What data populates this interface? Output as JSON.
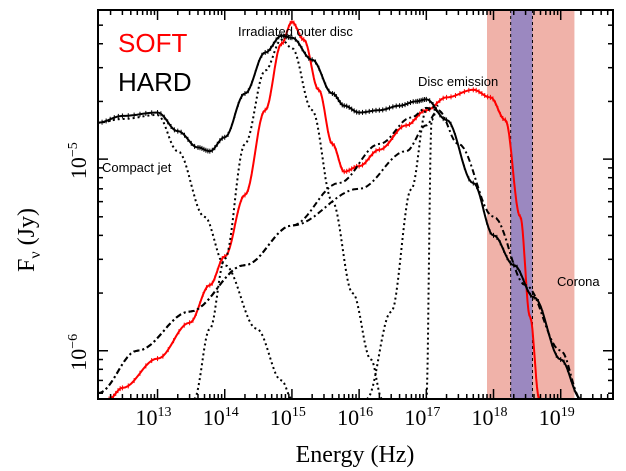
{
  "chart_data": {
    "type": "line",
    "xlabel": "Energy (Hz)",
    "ylabel_main": "F",
    "ylabel_sub": "ν",
    "ylabel_unit": " (Jy)",
    "x_scale": "log",
    "y_scale": "log",
    "xlim": [
      1300000000000.0,
      6e+19
    ],
    "ylim": [
      5.6e-07,
      6e-05
    ],
    "x_ticks": [
      {
        "base": "10",
        "exp": "13",
        "value": 10000000000000.0
      },
      {
        "base": "10",
        "exp": "14",
        "value": 100000000000000.0
      },
      {
        "base": "10",
        "exp": "15",
        "value": 1000000000000000.0
      },
      {
        "base": "10",
        "exp": "16",
        "value": 1e+16
      },
      {
        "base": "10",
        "exp": "17",
        "value": 1e+17
      },
      {
        "base": "10",
        "exp": "18",
        "value": 1e+18
      },
      {
        "base": "10",
        "exp": "19",
        "value": 1e+19
      }
    ],
    "y_ticks": [
      {
        "base": "10",
        "exp": "−5",
        "value": 1e-05
      },
      {
        "base": "10",
        "exp": "−6",
        "value": 1e-06
      }
    ],
    "legend": [
      {
        "label": "SOFT",
        "color": "#ff0000"
      },
      {
        "label": "HARD",
        "color": "#000000"
      }
    ],
    "annotations": {
      "irradiated": "Irradiated outer disc",
      "disc": "Disc emission",
      "jet": "Compact jet",
      "corona": "Corona"
    },
    "bands": [
      {
        "x0": 8e+17,
        "x1": 1.6e+19,
        "color": "#f0b2a9"
      },
      {
        "x0": 1.8e+18,
        "x1": 3.8e+18,
        "color": "#9b88c0"
      }
    ],
    "series": [
      {
        "name": "SOFT",
        "color": "#ff0000",
        "style": "solid-markers",
        "points": [
          [
            1900000000000.0,
            5.6e-07
          ],
          [
            3000000000000.0,
            6.4e-07
          ],
          [
            10000000000000.0,
            9.1e-07
          ],
          [
            30000000000000.0,
            1.4e-06
          ],
          [
            60000000000000.0,
            2.2e-06
          ],
          [
            100000000000000.0,
            3.1e-06
          ],
          [
            200000000000000.0,
            6.5e-06
          ],
          [
            400000000000000.0,
            1.8e-05
          ],
          [
            700000000000000.0,
            4e-05
          ],
          [
            1000000000000000.0,
            5.2e-05
          ],
          [
            1500000000000000.0,
            4.2e-05
          ],
          [
            2500000000000000.0,
            2.3e-05
          ],
          [
            4000000000000000.0,
            1.2e-05
          ],
          [
            6000000000000000.0,
            8.6e-06
          ],
          [
            1e+16,
            9.2e-06
          ],
          [
            2e+16,
            1.12e-05
          ],
          [
            5e+16,
            1.5e-05
          ],
          [
            1e+17,
            1.8e-05
          ],
          [
            2e+17,
            2.1e-05
          ],
          [
            5e+17,
            2.3e-05
          ],
          [
            9e+17,
            2.1e-05
          ],
          [
            1.5e+18,
            1.6e-05
          ],
          [
            2.5e+18,
            5e-06
          ],
          [
            3.5e+18,
            1.5e-06
          ],
          [
            4.8e+18,
            5.6e-07
          ]
        ]
      },
      {
        "name": "HARD",
        "color": "#000000",
        "style": "solid-markers",
        "points": [
          [
            1300000000000.0,
            1.55e-05
          ],
          [
            3000000000000.0,
            1.68e-05
          ],
          [
            10000000000000.0,
            1.75e-05
          ],
          [
            20000000000000.0,
            1.4e-05
          ],
          [
            40000000000000.0,
            1.15e-05
          ],
          [
            60000000000000.0,
            1.1e-05
          ],
          [
            100000000000000.0,
            1.3e-05
          ],
          [
            200000000000000.0,
            2.2e-05
          ],
          [
            400000000000000.0,
            3.6e-05
          ],
          [
            700000000000000.0,
            4.4e-05
          ],
          [
            1000000000000000.0,
            4.3e-05
          ],
          [
            2000000000000000.0,
            3.3e-05
          ],
          [
            4000000000000000.0,
            2.2e-05
          ],
          [
            6000000000000000.0,
            1.9e-05
          ],
          [
            1e+16,
            1.75e-05
          ],
          [
            2e+16,
            1.8e-05
          ],
          [
            4e+16,
            1.9e-05
          ],
          [
            7e+16,
            2e-05
          ],
          [
            1e+17,
            2.05e-05
          ],
          [
            2e+17,
            1.6e-05
          ],
          [
            5e+17,
            7.5e-06
          ],
          [
            1e+18,
            4e-06
          ],
          [
            2e+18,
            2.8e-06
          ],
          [
            4e+18,
            1.9e-06
          ],
          [
            1e+19,
            9e-07
          ],
          [
            2e+19,
            5.6e-07
          ]
        ]
      },
      {
        "name": "",
        "color": "#000000",
        "style": "dotted",
        "points": [
          [
            1300000000000.0,
            1.55e-05
          ],
          [
            3000000000000.0,
            1.62e-05
          ],
          [
            10000000000000.0,
            1.7e-05
          ],
          [
            20000000000000.0,
            1.1e-05
          ],
          [
            50000000000000.0,
            5e-06
          ],
          [
            100000000000000.0,
            2.8e-06
          ],
          [
            300000000000000.0,
            1.3e-06
          ],
          [
            700000000000000.0,
            7e-07
          ],
          [
            1000000000000000.0,
            5.6e-07
          ]
        ]
      },
      {
        "name": "",
        "color": "#000000",
        "style": "dotted",
        "points": [
          [
            35000000000000.0,
            5.6e-07
          ],
          [
            60000000000000.0,
            1.3e-06
          ],
          [
            100000000000000.0,
            3e-06
          ],
          [
            200000000000000.0,
            1.2e-05
          ],
          [
            400000000000000.0,
            2.9e-05
          ],
          [
            700000000000000.0,
            4.2e-05
          ],
          [
            1000000000000000.0,
            3.8e-05
          ],
          [
            2000000000000000.0,
            1.8e-05
          ],
          [
            4000000000000000.0,
            6e-06
          ],
          [
            8000000000000000.0,
            2e-06
          ],
          [
            1.5e+16,
            9e-07
          ],
          [
            2.2e+16,
            5.6e-07
          ]
        ]
      },
      {
        "name": "",
        "color": "#000000",
        "style": "dashdot",
        "points": [
          [
            1300000000000.0,
            6e-07
          ],
          [
            5000000000000.0,
            1e-06
          ],
          [
            30000000000000.0,
            1.6e-06
          ],
          [
            200000000000000.0,
            2.8e-06
          ],
          [
            1000000000000000.0,
            4.5e-06
          ],
          [
            5000000000000000.0,
            7.5e-06
          ],
          [
            2e+16,
            1.2e-05
          ],
          [
            6e+16,
            1.65e-05
          ],
          [
            1e+17,
            1.85e-05
          ],
          [
            1.5e+17,
            1.8e-05
          ],
          [
            3e+17,
            1.2e-05
          ],
          [
            1e+18,
            5e-06
          ],
          [
            3e+18,
            2.2e-06
          ],
          [
            1e+19,
            1e-06
          ],
          [
            2e+19,
            5.6e-07
          ]
        ]
      },
      {
        "name": "",
        "color": "#000000",
        "style": "dashdot",
        "points": [
          [
            1300000000000.0,
            6e-07
          ],
          [
            5000000000000.0,
            1e-06
          ],
          [
            30000000000000.0,
            1.6e-06
          ],
          [
            200000000000000.0,
            2.8e-06
          ],
          [
            1000000000000000.0,
            4.5e-06
          ],
          [
            1e+16,
            7e-06
          ],
          [
            5e+16,
            1.1e-05
          ],
          [
            1e+17,
            1.5e-05
          ],
          [
            1.4e+17,
            1.75e-05
          ]
        ]
      },
      {
        "name": "",
        "color": "#000000",
        "style": "dotted",
        "points": [
          [
            1.3e+16,
            5.6e-07
          ],
          [
            3e+16,
            1.6e-06
          ],
          [
            6e+16,
            7e-06
          ],
          [
            1e+17,
            1.8e-05
          ],
          [
            1.5e+17,
            1.9e-05
          ],
          [
            1.2e+17,
            1.6e-05
          ],
          [
            1e+17,
            5.6e-07
          ]
        ]
      }
    ]
  }
}
